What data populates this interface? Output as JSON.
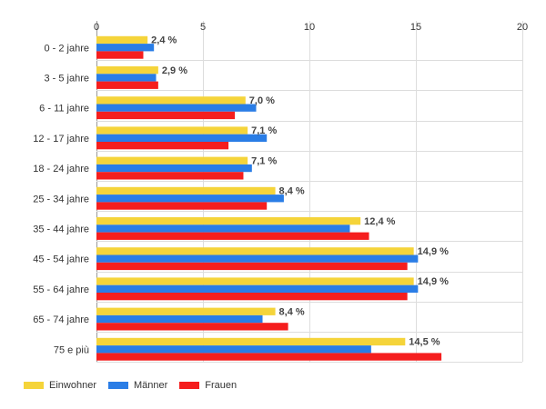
{
  "chart_data": {
    "type": "bar",
    "orientation": "horizontal",
    "categories": [
      "0 - 2 jahre",
      "3 - 5 jahre",
      "6 - 11 jahre",
      "12 - 17 jahre",
      "18 - 24 jahre",
      "25 - 34 jahre",
      "35 - 44 jahre",
      "45 - 54 jahre",
      "55 - 64 jahre",
      "65 - 74 jahre",
      "75 e più"
    ],
    "series": [
      {
        "name": "Einwohner",
        "color": "#f5d43a",
        "values": [
          2.4,
          2.9,
          7.0,
          7.1,
          7.1,
          8.4,
          12.4,
          14.9,
          14.9,
          8.4,
          14.5
        ]
      },
      {
        "name": "Männer",
        "color": "#2a7de6",
        "values": [
          2.7,
          2.8,
          7.5,
          8.0,
          7.3,
          8.8,
          11.9,
          15.1,
          15.1,
          7.8,
          12.9
        ]
      },
      {
        "name": "Frauen",
        "color": "#f51e1e",
        "values": [
          2.2,
          2.9,
          6.5,
          6.2,
          6.9,
          8.0,
          12.8,
          14.6,
          14.6,
          9.0,
          16.2
        ]
      }
    ],
    "data_labels": [
      "2,4 %",
      "2,9 %",
      "7,0 %",
      "7,1 %",
      "7,1 %",
      "8,4 %",
      "12,4 %",
      "14,9 %",
      "14,9 %",
      "8,4 %",
      "14,5 %"
    ],
    "x_ticks": [
      "0",
      "5",
      "10",
      "15",
      "20"
    ],
    "xlim": [
      0,
      20
    ],
    "grid": true,
    "legend_position": "bottom-left"
  }
}
